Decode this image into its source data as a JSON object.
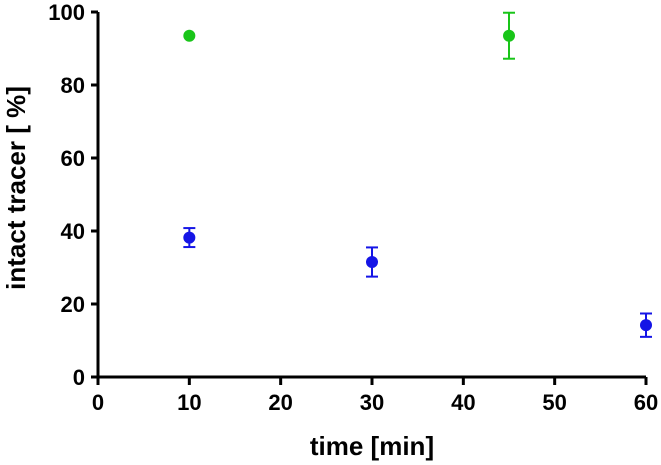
{
  "chart_data": {
    "type": "scatter",
    "xlabel": "time [min]",
    "ylabel": "intact tracer [ %]",
    "xlim": [
      0,
      60
    ],
    "ylim": [
      0,
      100
    ],
    "x_ticks": [
      0,
      10,
      20,
      30,
      40,
      50,
      60
    ],
    "y_ticks": [
      0,
      20,
      40,
      60,
      80,
      100
    ],
    "x_tick_labels": [
      "0",
      "10",
      "20",
      "30",
      "40",
      "50",
      "60"
    ],
    "y_tick_labels": [
      "0",
      "20",
      "40",
      "60",
      "80",
      "100"
    ],
    "grid": false,
    "legend": false,
    "series": [
      {
        "color": "#19c519",
        "points": [
          {
            "x": 10,
            "y": 93.5,
            "err": 0
          },
          {
            "x": 45,
            "y": 93.5,
            "err": 6.3
          }
        ]
      },
      {
        "color": "#1515e6",
        "points": [
          {
            "x": 10,
            "y": 38.2,
            "err": 2.6
          },
          {
            "x": 30,
            "y": 31.5,
            "err": 4.0
          },
          {
            "x": 60,
            "y": 14.2,
            "err": 3.2
          }
        ]
      }
    ]
  }
}
